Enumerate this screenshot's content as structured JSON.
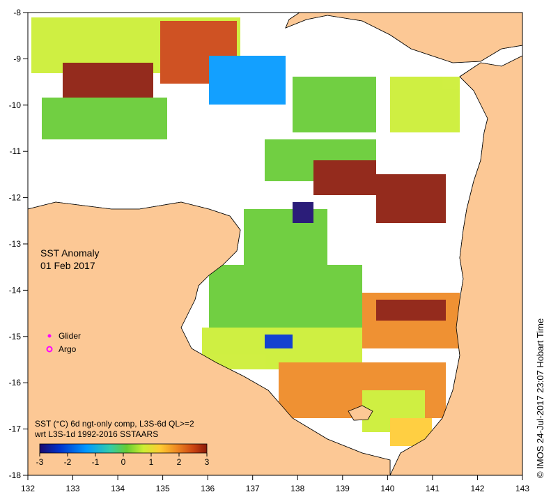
{
  "map": {
    "title_line1": "SST Anomaly",
    "title_line2": "01 Feb 2017",
    "legend": {
      "glider_label": "Glider",
      "argo_label": "Argo",
      "glider_color": "#ff00ff",
      "argo_color": "#ff00ff"
    },
    "colorbar": {
      "caption_line1": "SST (°C) 6d ngt-only comp, L3S-6d QL>=2",
      "caption_line2": "wrt L3S-1d 1992-2016 SSTAARS",
      "ticks": [
        "-3",
        "-2",
        "-1",
        "0",
        "1",
        "2",
        "3"
      ],
      "colors": [
        "#1a0a6e",
        "#0033cc",
        "#0099ff",
        "#33ccaa",
        "#66cc33",
        "#ccee33",
        "#ffcc33",
        "#ee8822",
        "#cc4411",
        "#8b1a0a"
      ]
    },
    "credit": "© IMOS 24-Jul-2017 23:07 Hobart Time",
    "x_ticks": [
      "132",
      "133",
      "134",
      "135",
      "136",
      "137",
      "138",
      "139",
      "140",
      "141",
      "142",
      "143"
    ],
    "y_ticks": [
      "-8",
      "-9",
      "-10",
      "-11",
      "-12",
      "-13",
      "-14",
      "-15",
      "-16",
      "-17",
      "-18"
    ],
    "land_color": "#fcc895",
    "nodata_color": "#ffffff"
  }
}
